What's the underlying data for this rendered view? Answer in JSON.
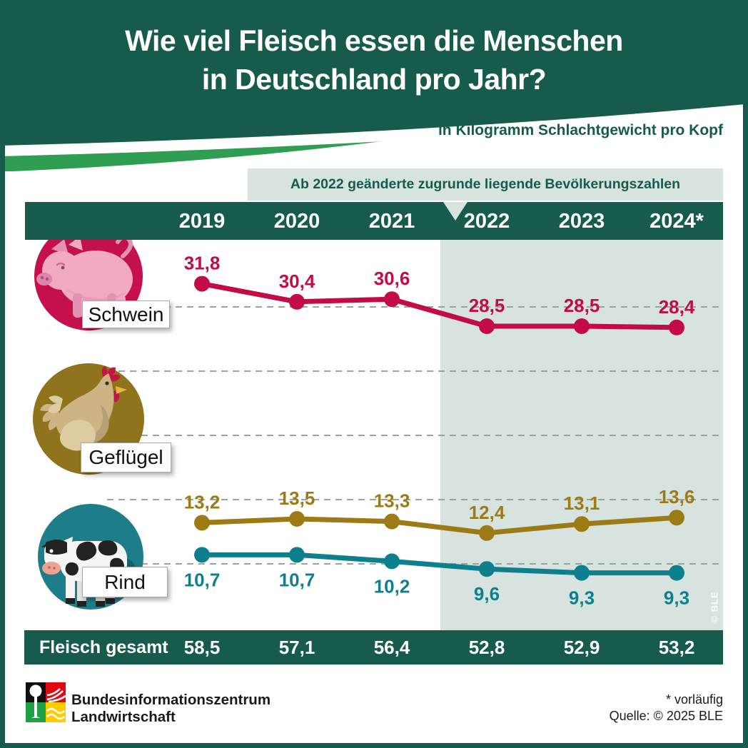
{
  "header": {
    "title_line1": "Wie viel Fleisch essen die Menschen",
    "title_line2": "in Deutschland pro Jahr?",
    "subtitle": "in Kilogramm Schlachtgewicht pro Kopf"
  },
  "note": "Ab 2022 geänderte zugrunde liegende Bevölkerungszahlen",
  "rows": [
    {
      "label": "Schwein"
    },
    {
      "label": "Geflügel"
    },
    {
      "label": "Rind"
    }
  ],
  "totals": {
    "label": "Fleisch gesamt",
    "values": [
      "58,5",
      "57,1",
      "56,4",
      "52,8",
      "52,9",
      "53,2"
    ]
  },
  "watermark": "© BLE",
  "footer": {
    "org_line1": "Bundesinformationszentrum",
    "org_line2": "Landwirtschaft",
    "footnote": "* vorläufig",
    "source": "Quelle: © 2025 BLE"
  },
  "colors": {
    "dark_green": "#175b4c",
    "swoosh_green": "#2f9e53",
    "shaded_bg": "#d6e3de",
    "schwein": "#c30b46",
    "gefluegel": "#9c7b17",
    "rind": "#0e7f8d"
  },
  "chart_data": {
    "type": "line",
    "title": "Wie viel Fleisch essen die Menschen in Deutschland pro Jahr?",
    "ylabel": "in Kilogramm Schlachtgewicht pro Kopf",
    "annotation": "Ab 2022 geänderte zugrunde liegende Bevölkerungszahlen",
    "categories": [
      "2019",
      "2020",
      "2021",
      "2022",
      "2023",
      "2024*"
    ],
    "highlight_from_category": "2022",
    "gridlines_kg": [
      30,
      25,
      20,
      15,
      10
    ],
    "grid": true,
    "legend_position": "left-icons",
    "series": [
      {
        "name": "Schwein",
        "color": "#c30b46",
        "values": [
          31.8,
          30.4,
          30.6,
          28.5,
          28.5,
          28.4
        ],
        "labels": [
          "31,8",
          "30,4",
          "30,6",
          "28,5",
          "28,5",
          "28,4"
        ],
        "label_position": "above"
      },
      {
        "name": "Geflügel",
        "color": "#9c7b17",
        "values": [
          13.2,
          13.5,
          13.3,
          12.4,
          13.1,
          13.6
        ],
        "labels": [
          "13,2",
          "13,5",
          "13,3",
          "12,4",
          "13,1",
          "13,6"
        ],
        "label_position": "above"
      },
      {
        "name": "Rind",
        "color": "#0e7f8d",
        "values": [
          10.7,
          10.7,
          10.2,
          9.6,
          9.3,
          9.3
        ],
        "labels": [
          "10,7",
          "10,7",
          "10,2",
          "9,6",
          "9,3",
          "9,3"
        ],
        "label_position": "below"
      }
    ],
    "totals": {
      "name": "Fleisch gesamt",
      "values": [
        58.5,
        57.1,
        56.4,
        52.8,
        52.9,
        53.2
      ]
    }
  }
}
